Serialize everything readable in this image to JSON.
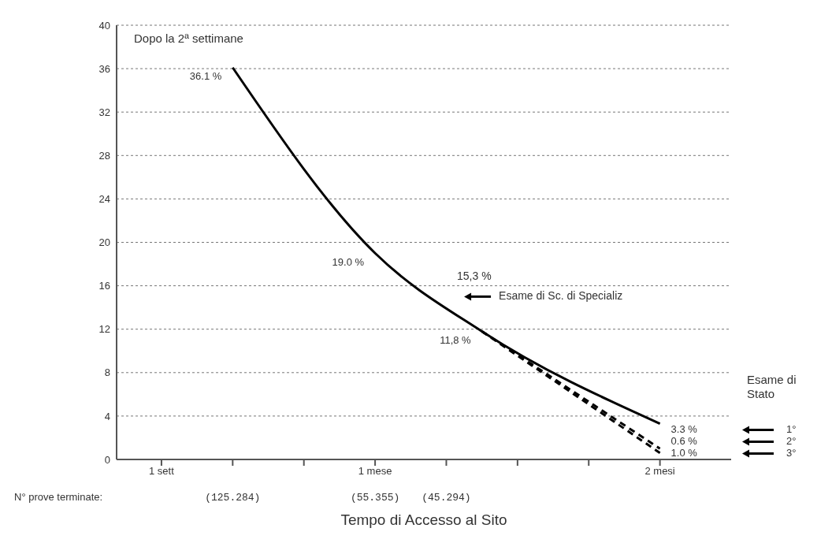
{
  "chart_data": {
    "type": "line",
    "xlabel": "Tempo di Accesso al Sito",
    "categories": [
      "1 sett",
      null,
      null,
      null,
      null,
      null,
      "1 mese",
      null,
      null,
      null,
      null,
      null,
      null,
      null,
      "2 mesi"
    ],
    "ylim": [
      0,
      40
    ],
    "yticks": [
      0,
      4,
      8,
      12,
      16,
      20,
      24,
      28,
      32,
      36,
      40
    ],
    "grid": "y",
    "series": [
      {
        "color": "#000000",
        "line_style": "solid",
        "values": [
          null,
          null,
          36.1,
          null,
          null,
          null,
          19.0,
          null,
          null,
          11.8,
          null,
          null,
          null,
          null,
          3.3
        ],
        "value_labels": [
          null,
          null,
          "36.1 %",
          null,
          null,
          null,
          "19.0 %",
          null,
          null,
          "11,8 %",
          null,
          null,
          null,
          null,
          "3.3 %"
        ]
      },
      {
        "color": "#000000",
        "line_style": "dashed",
        "values": [
          null,
          null,
          null,
          null,
          null,
          null,
          null,
          null,
          null,
          11.8,
          null,
          null,
          null,
          null,
          0.6
        ],
        "value_labels": [
          null,
          null,
          null,
          null,
          null,
          null,
          null,
          null,
          null,
          null,
          null,
          null,
          null,
          null,
          "0.6 %"
        ]
      },
      {
        "color": "#000000",
        "line_style": "dashed",
        "values": [
          null,
          null,
          null,
          null,
          null,
          null,
          null,
          null,
          null,
          11.8,
          null,
          null,
          null,
          null,
          1.0
        ],
        "value_labels": [
          null,
          null,
          null,
          null,
          null,
          null,
          null,
          null,
          null,
          null,
          null,
          null,
          null,
          null,
          "1.0 %"
        ]
      }
    ],
    "annotations": [
      "Dopo la 2ª settimane",
      "Esame di Stato",
      "1°",
      "2°",
      "3°",
      "N° prove terminate:",
      "(125.284)",
      "(55.355)",
      "(45.294)",
      "15,3 %",
      "Esame di Sc. di Specializ"
    ]
  }
}
